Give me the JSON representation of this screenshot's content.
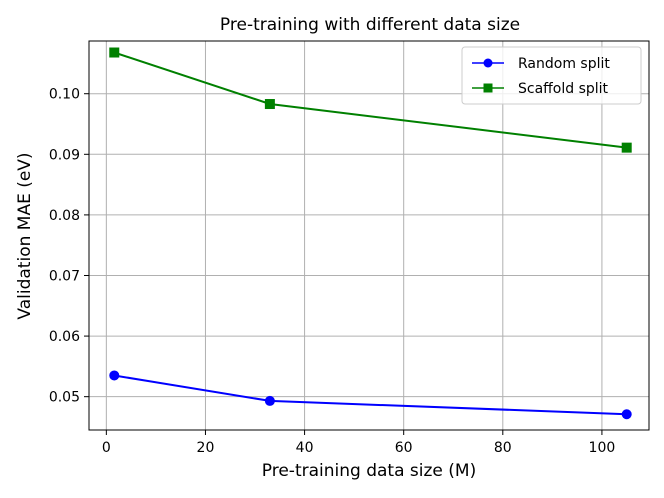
{
  "chart_data": {
    "type": "line",
    "title": "Pre-training with different data size",
    "xlabel": "Pre-training data size (M)",
    "ylabel": "Validation MAE (eV)",
    "xlim": [
      -3.5,
      109.5
    ],
    "ylim": [
      0.0445,
      0.1087
    ],
    "xticks": [
      0,
      20,
      40,
      60,
      80,
      100
    ],
    "yticks": [
      0.05,
      0.06,
      0.07,
      0.08,
      0.09,
      0.1
    ],
    "xtick_labels": [
      "0",
      "20",
      "40",
      "60",
      "80",
      "100"
    ],
    "ytick_labels": [
      "0.05",
      "0.06",
      "0.07",
      "0.08",
      "0.09",
      "0.10"
    ],
    "grid": true,
    "legend_position": "top-right",
    "x": [
      1.6,
      33,
      105
    ],
    "series": [
      {
        "name": "Random split",
        "values": [
          0.0535,
          0.0493,
          0.0471
        ],
        "color": "#0000ff",
        "marker": "circle"
      },
      {
        "name": "Scaffold split",
        "values": [
          0.1068,
          0.0983,
          0.0911
        ],
        "color": "#008000",
        "marker": "square"
      }
    ]
  }
}
